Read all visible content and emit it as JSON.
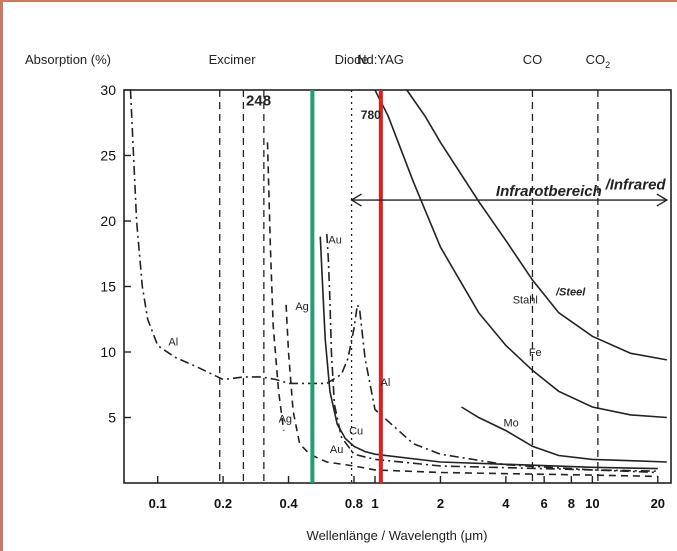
{
  "chart_data": {
    "type": "line",
    "title": "",
    "ylabel": "Absorption (%)",
    "xlabel": "Wellenlänge / Wavelength (μm)",
    "x_scale": "log",
    "xlim": [
      0.07,
      23
    ],
    "ylim": [
      0,
      30
    ],
    "x_ticks": [
      {
        "value": 0.1,
        "label": "0.1"
      },
      {
        "value": 0.2,
        "label": "0.2"
      },
      {
        "value": 0.4,
        "label": "0.4"
      },
      {
        "value": 0.8,
        "label": "0.8"
      },
      {
        "value": 1,
        "label": "1"
      },
      {
        "value": 2,
        "label": "2"
      },
      {
        "value": 4,
        "label": "4"
      },
      {
        "value": 6,
        "label": "6"
      },
      {
        "value": 8,
        "label": "8"
      },
      {
        "value": 10,
        "label": "10"
      },
      {
        "value": 20,
        "label": "20"
      }
    ],
    "y_ticks": [
      {
        "value": 5,
        "label": "5"
      },
      {
        "value": 10,
        "label": "10"
      },
      {
        "value": 15,
        "label": "15"
      },
      {
        "value": 20,
        "label": "20"
      },
      {
        "value": 25,
        "label": "25"
      },
      {
        "value": 30,
        "label": "30"
      }
    ],
    "laser_labels": [
      {
        "name": "Excimer",
        "x": 0.22,
        "color": "#222222"
      },
      {
        "name": "Diode",
        "x": 0.78,
        "color": "#222222"
      },
      {
        "name": "Nd:YAG",
        "x": 1.06,
        "color": "#e02020"
      },
      {
        "name": "CO",
        "x": 5.3,
        "color": "#222222"
      },
      {
        "name": "CO2",
        "x": 10.6,
        "color": "#222222"
      }
    ],
    "laser_lines": [
      {
        "x": 0.193,
        "style": "dashed",
        "color": "#222222"
      },
      {
        "x": 0.248,
        "style": "dashed",
        "color": "#222222"
      },
      {
        "x": 0.308,
        "style": "dashed",
        "color": "#222222"
      },
      {
        "x": 0.78,
        "style": "dotted",
        "color": "#222222"
      },
      {
        "x": 5.3,
        "style": "dashed",
        "color": "#222222"
      },
      {
        "x": 10.6,
        "style": "dashed",
        "color": "#222222"
      }
    ],
    "highlight_lines": [
      {
        "x": 0.515,
        "color": "#20a070"
      },
      {
        "x": 1.064,
        "color": "#e02020"
      }
    ],
    "annotations": [
      {
        "text": "248",
        "x": 0.255,
        "y": 28.8
      },
      {
        "text": "780",
        "x": 0.86,
        "y": 27.8
      },
      {
        "text": "Infrarotbereich",
        "x": 3.6,
        "y": 21.9
      },
      {
        "text": "/Infrared",
        "x": 11.5,
        "y": 22.4
      },
      {
        "text": "Stahl",
        "x": 4.3,
        "y": 13.7
      },
      {
        "text": "/Steel",
        "x": 6.8,
        "y": 14.3
      },
      {
        "text": "Al",
        "x": 0.112,
        "y": 10.5
      },
      {
        "text": "Ag",
        "x": 0.43,
        "y": 13.2
      },
      {
        "text": "Au",
        "x": 0.61,
        "y": 18.3
      },
      {
        "text": "Ag",
        "x": 0.36,
        "y": 4.6
      },
      {
        "text": "Au",
        "x": 0.62,
        "y": 2.3
      },
      {
        "text": "Cu",
        "x": 0.76,
        "y": 3.7
      },
      {
        "text": "Al",
        "x": 1.06,
        "y": 7.4
      },
      {
        "text": "Fe",
        "x": 5.1,
        "y": 9.7
      },
      {
        "text": "Mo",
        "x": 3.9,
        "y": 4.3
      }
    ],
    "infrared_arrow": {
      "x_from": 0.78,
      "x_to": 22,
      "y": 21.6
    },
    "series": [
      {
        "name": "Al",
        "style": "dashdot",
        "x": [
          0.075,
          0.08,
          0.085,
          0.09,
          0.1,
          0.12,
          0.15,
          0.2,
          0.25,
          0.3,
          0.35,
          0.4,
          0.5,
          0.6,
          0.7,
          0.75,
          0.8,
          0.83,
          0.85,
          0.9,
          1.0,
          1.5,
          2,
          4,
          10,
          20
        ],
        "y": [
          30,
          20,
          15,
          12.5,
          10.5,
          9.6,
          8.9,
          7.9,
          8.1,
          8.1,
          7.9,
          7.6,
          7.6,
          7.6,
          8.3,
          9.5,
          11.8,
          13.6,
          13.2,
          9.5,
          5.6,
          3.0,
          2.2,
          1.4,
          1.0,
          0.8
        ]
      },
      {
        "name": "Ag left",
        "style": "dashed",
        "x": [
          0.32,
          0.33,
          0.34,
          0.36,
          0.38
        ],
        "y": [
          26,
          18,
          12,
          7,
          4
        ]
      },
      {
        "name": "Ag",
        "style": "dashed",
        "x": [
          0.39,
          0.4,
          0.42,
          0.45,
          0.5,
          0.6,
          0.8,
          1,
          2,
          10,
          20
        ],
        "y": [
          13.6,
          10,
          5.5,
          3,
          2.2,
          1.6,
          1.3,
          1.0,
          0.8,
          0.6,
          0.5
        ]
      },
      {
        "name": "Au",
        "style": "dashdot",
        "x": [
          0.6,
          0.61,
          0.62,
          0.63,
          0.65,
          0.7,
          0.8,
          1,
          2,
          10,
          20
        ],
        "y": [
          19,
          17,
          14,
          10,
          6,
          3.5,
          2.2,
          1.8,
          1.3,
          1.0,
          0.9
        ]
      },
      {
        "name": "Cu",
        "style": "solid",
        "x": [
          0.56,
          0.57,
          0.59,
          0.62,
          0.67,
          0.73,
          0.8,
          0.9,
          1,
          2,
          10,
          20
        ],
        "y": [
          18.8,
          16,
          11,
          7,
          4.5,
          3.4,
          2.8,
          2.4,
          2.2,
          1.6,
          1.2,
          1.1
        ]
      },
      {
        "name": "Fe",
        "style": "solid",
        "x": [
          1,
          1.15,
          1.5,
          2,
          3,
          4,
          5.3,
          7,
          10,
          15,
          22
        ],
        "y": [
          30,
          28,
          23,
          18,
          13,
          10.5,
          8.6,
          7,
          5.8,
          5.2,
          5.0
        ]
      },
      {
        "name": "Stahl/Steel",
        "style": "solid",
        "x": [
          1.4,
          1.7,
          2,
          3,
          4,
          5.3,
          7,
          10,
          15,
          22
        ],
        "y": [
          30,
          28,
          26,
          21.5,
          18.5,
          15.5,
          13,
          11.2,
          9.9,
          9.4
        ]
      },
      {
        "name": "Mo",
        "style": "solid",
        "x": [
          2.5,
          3,
          4,
          5.3,
          7,
          10,
          15,
          22
        ],
        "y": [
          5.8,
          5.0,
          4.0,
          2.8,
          2.1,
          1.8,
          1.7,
          1.6
        ]
      }
    ]
  }
}
